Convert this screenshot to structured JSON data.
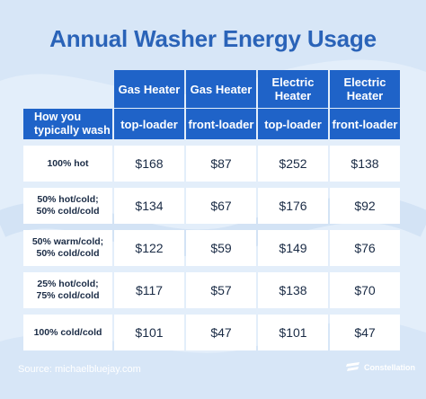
{
  "title": "Annual Washer Energy Usage",
  "header_row1": [
    "Gas Heater",
    "Gas Heater",
    "Electric Heater",
    "Electric Heater"
  ],
  "header_row2": {
    "label": "How you typically wash",
    "columns": [
      "top-loader",
      "front-loader",
      "top-loader",
      "front-loader"
    ]
  },
  "rows": [
    {
      "label": "100% hot",
      "values": [
        "$168",
        "$87",
        "$252",
        "$138"
      ]
    },
    {
      "label": "50% hot/cold; 50% cold/cold",
      "values": [
        "$134",
        "$67",
        "$176",
        "$92"
      ]
    },
    {
      "label": "50% warm/cold; 50% cold/cold",
      "values": [
        "$122",
        "$59",
        "$149",
        "$76"
      ]
    },
    {
      "label": "25% hot/cold; 75% cold/cold",
      "values": [
        "$117",
        "$57",
        "$138",
        "$70"
      ]
    },
    {
      "label": "100% cold/cold",
      "values": [
        "$101",
        "$47",
        "$101",
        "$47"
      ]
    }
  ],
  "footer": {
    "source": "Source: michaelbluejay.com",
    "brand": "Constellation"
  },
  "colors": {
    "background": "#e3eefa",
    "header": "#1f63c8",
    "title": "#2a63b8",
    "cell": "#ffffff"
  }
}
